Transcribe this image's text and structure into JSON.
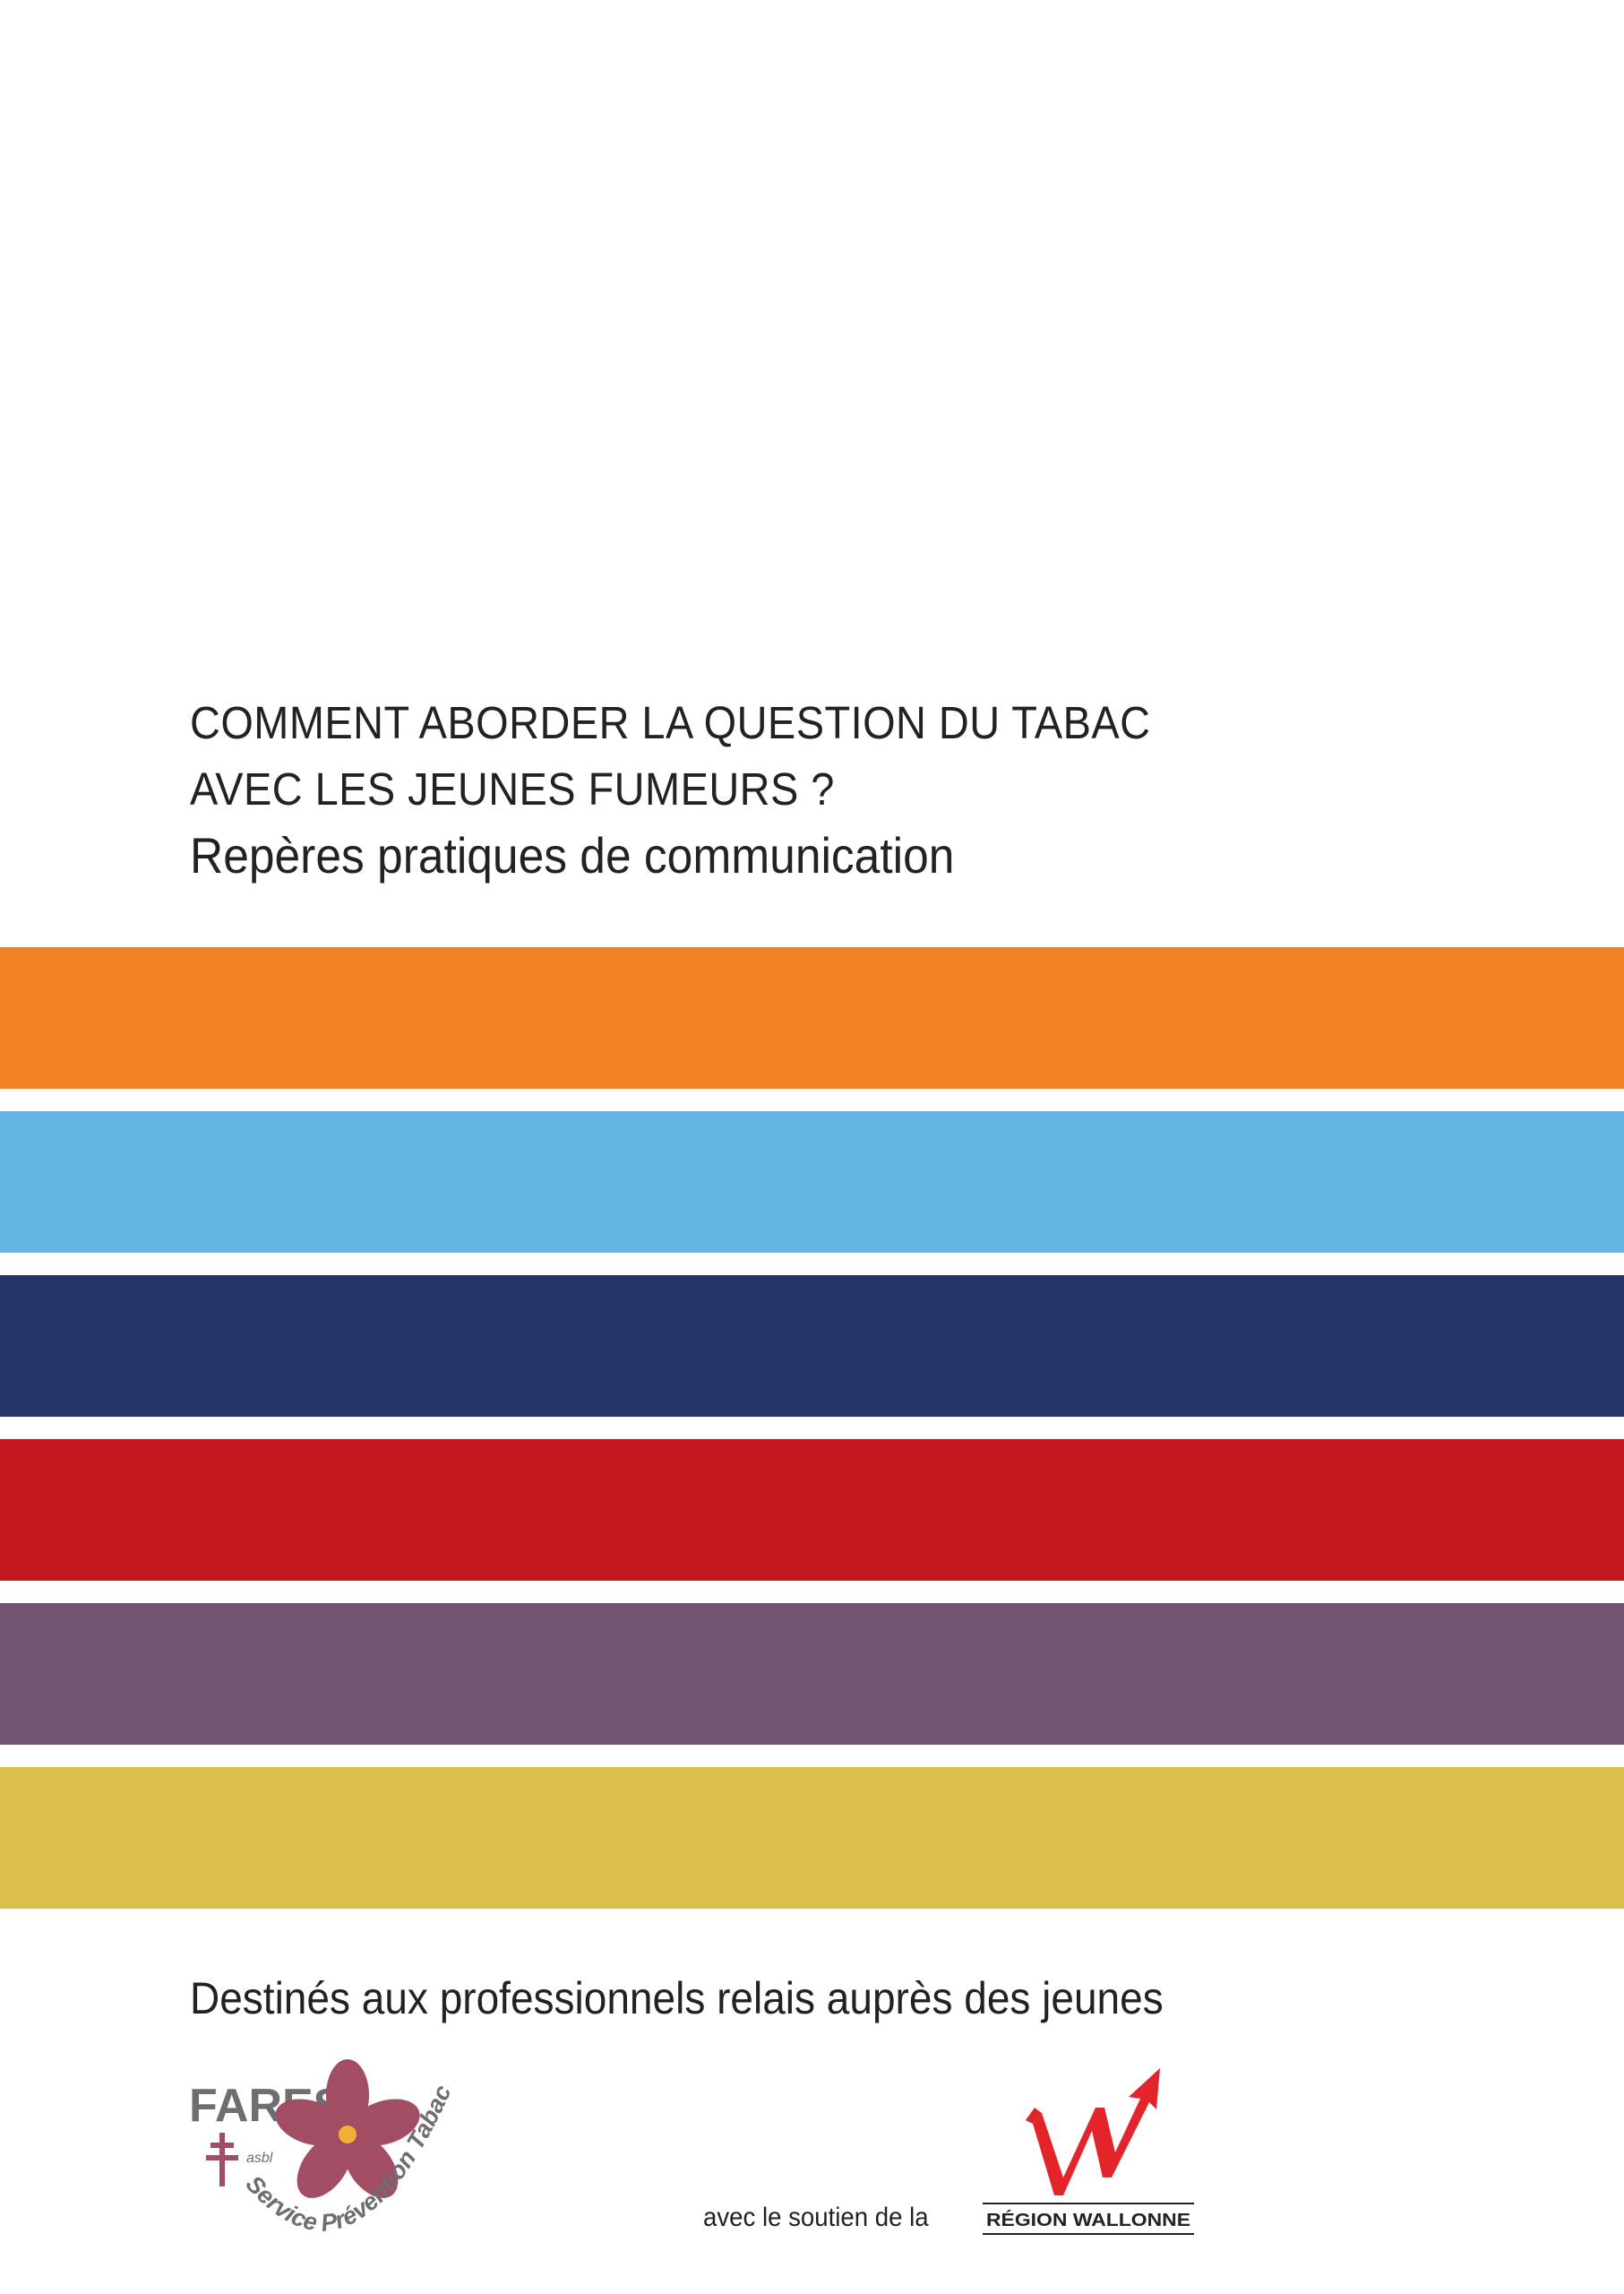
{
  "title": {
    "line1": "COMMENT ABORDER LA QUESTION DU TABAC",
    "line2": "AVEC LES JEUNES FUMEURS ?",
    "subtitle": "Repères pratiques de communication"
  },
  "stripes": [
    {
      "color": "#f08224"
    },
    {
      "color": "#65b5e3"
    },
    {
      "color": "#253466"
    },
    {
      "color": "#c2171f"
    },
    {
      "color": "#71526f"
    },
    {
      "color": "#dcbe4c"
    }
  ],
  "audience": "Destinés aux professionnels relais auprès des jeunes",
  "fares_logo": {
    "name": "FARES",
    "asbl": "asbl",
    "service": "Service Prévention Tabac",
    "text_color": "#6d6e71",
    "flower_color": "#a34d64",
    "center_color": "#f2b035"
  },
  "support_text": "avec le soutien de la",
  "wallonie_logo": {
    "label": "RÉGION WALLONNE",
    "mark_color": "#e3242b"
  }
}
